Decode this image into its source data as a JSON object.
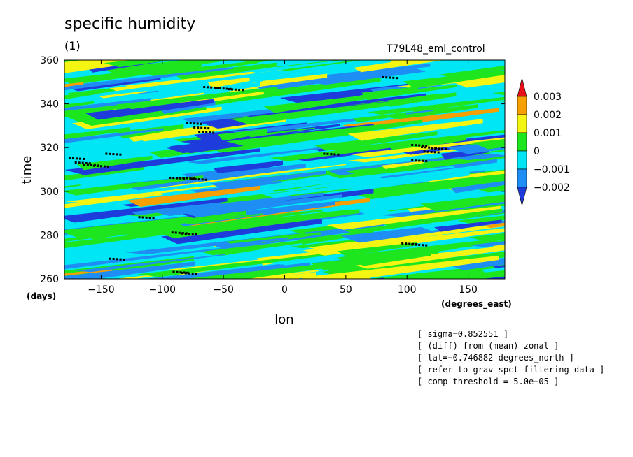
{
  "header": {
    "title": "specific humidity",
    "subtitle": "(1)",
    "run_label": "T79L48_eml_control"
  },
  "chart_data": {
    "type": "heatmap",
    "title": "specific humidity",
    "xlabel": "lon",
    "ylabel": "time",
    "x_unit": "(degrees_east)",
    "y_unit": "(days)",
    "xlim": [
      -180,
      180
    ],
    "ylim": [
      260,
      360
    ],
    "x_ticks": [
      -150,
      -100,
      -50,
      0,
      50,
      100,
      150
    ],
    "y_ticks": [
      260,
      280,
      300,
      320,
      340,
      360
    ],
    "x_tick_labels": [
      "−150",
      "−100",
      "−50",
      "0",
      "50",
      "100",
      "150"
    ],
    "y_tick_labels": [
      "260",
      "280",
      "300",
      "320",
      "340",
      "360"
    ],
    "colorbar": {
      "levels": [
        0.003,
        0.002,
        0.001,
        0,
        -0.001,
        -0.002
      ],
      "labels": [
        "0.003",
        "0.002",
        "0.001",
        "0",
        "−0.001",
        "−0.002"
      ],
      "colors": [
        "#e8101a",
        "#f5a000",
        "#f5f514",
        "#1ee61e",
        "#00e6f5",
        "#1e8ef5",
        "#1e3cdc"
      ]
    },
    "significance_marks": [
      {
        "lon": -170,
        "time": 315
      },
      {
        "lon": -165,
        "time": 313
      },
      {
        "lon": -158,
        "time": 312
      },
      {
        "lon": -150,
        "time": 311.5
      },
      {
        "lon": -140,
        "time": 317
      },
      {
        "lon": -137,
        "time": 269
      },
      {
        "lon": -113,
        "time": 288
      },
      {
        "lon": -88,
        "time": 306
      },
      {
        "lon": -80,
        "time": 306
      },
      {
        "lon": -70,
        "time": 305.5
      },
      {
        "lon": -86,
        "time": 281
      },
      {
        "lon": -78,
        "time": 280.5
      },
      {
        "lon": -85,
        "time": 263
      },
      {
        "lon": -78,
        "time": 262.5
      },
      {
        "lon": -74,
        "time": 331
      },
      {
        "lon": -68,
        "time": 329
      },
      {
        "lon": -64,
        "time": 327
      },
      {
        "lon": -60,
        "time": 347.5
      },
      {
        "lon": -50,
        "time": 347
      },
      {
        "lon": -40,
        "time": 346.5
      },
      {
        "lon": 38,
        "time": 317
      },
      {
        "lon": 86,
        "time": 352
      },
      {
        "lon": 102,
        "time": 276
      },
      {
        "lon": 110,
        "time": 275.5
      },
      {
        "lon": 110,
        "time": 321
      },
      {
        "lon": 118,
        "time": 320
      },
      {
        "lon": 126,
        "time": 319.5
      },
      {
        "lon": 120,
        "time": 318
      },
      {
        "lon": 110,
        "time": 314
      }
    ]
  },
  "notes": [
    "[ sigma=0.852551 ]",
    "[ (diff) from (mean) zonal ]",
    "[ lat=−0.746882 degrees_north ]",
    "[ refer to grav spct filtering data ]",
    "[ comp threshold = 5.0e−05 ]"
  ]
}
